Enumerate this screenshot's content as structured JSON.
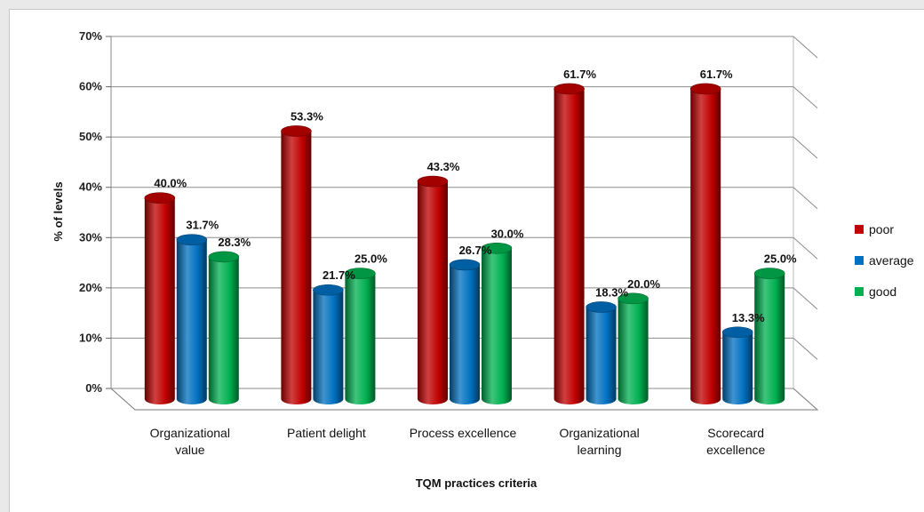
{
  "chart_data": {
    "type": "bar",
    "title": "",
    "xlabel": "TQM practices criteria",
    "ylabel": "% of levels",
    "ylim": [
      0,
      70
    ],
    "yticks": [
      "0%",
      "10%",
      "20%",
      "30%",
      "40%",
      "50%",
      "60%",
      "70%"
    ],
    "categories": [
      [
        "Organizational",
        "value"
      ],
      [
        "Patient delight"
      ],
      [
        "Process excellence"
      ],
      [
        "Organizational",
        "learning"
      ],
      [
        "Scorecard",
        "excellence"
      ]
    ],
    "series": [
      {
        "name": "poor",
        "color": "#c00000",
        "values": [
          40.0,
          53.3,
          43.3,
          61.7,
          61.7
        ],
        "labels": [
          "40.0%",
          "53.3%",
          "43.3%",
          "61.7%",
          "61.7%"
        ]
      },
      {
        "name": "average",
        "color": "#0070c0",
        "values": [
          31.7,
          21.7,
          26.7,
          18.3,
          13.3
        ],
        "labels": [
          "31.7%",
          "21.7%",
          "26.7%",
          "18.3%",
          "13.3%"
        ]
      },
      {
        "name": "good",
        "color": "#00b050",
        "values": [
          28.3,
          25.0,
          30.0,
          20.0,
          25.0
        ],
        "labels": [
          "28.3%",
          "25.0%",
          "30.0%",
          "20.0%",
          "25.0%"
        ]
      }
    ],
    "legend_position": "right",
    "grid": true,
    "style": "3d-cylinder"
  }
}
